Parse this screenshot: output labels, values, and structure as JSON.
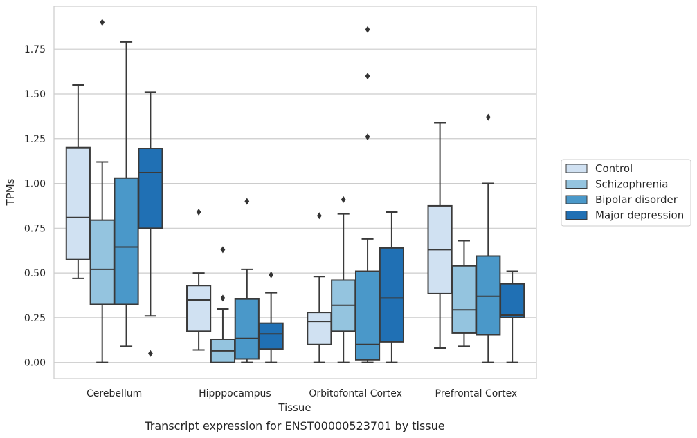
{
  "chart_data": {
    "type": "box",
    "xlabel": "Tissue",
    "ylabel": "TPMs",
    "caption": "Transcript expression for ENST00000523701 by tissue",
    "ylim": [
      -0.09,
      1.99
    ],
    "yticks": [
      "0.00",
      "0.25",
      "0.50",
      "0.75",
      "1.00",
      "1.25",
      "1.50",
      "1.75"
    ],
    "grid": "horizontal",
    "legend_position": "right",
    "categories": [
      "Cerebellum",
      "Hipppocampus",
      "Orbitofontal Cortex",
      "Prefrontal Cortex"
    ],
    "series": [
      {
        "name": "Control",
        "color": "#d0e1f2",
        "boxes": [
          {
            "whisker_low": 0.47,
            "q1": 0.575,
            "median": 0.81,
            "q3": 1.2,
            "whisker_high": 1.55,
            "outliers": []
          },
          {
            "whisker_low": 0.07,
            "q1": 0.175,
            "median": 0.35,
            "q3": 0.43,
            "whisker_high": 0.5,
            "outliers": [
              0.84
            ]
          },
          {
            "whisker_low": 0.0,
            "q1": 0.1,
            "median": 0.23,
            "q3": 0.28,
            "whisker_high": 0.48,
            "outliers": [
              0.82
            ]
          },
          {
            "whisker_low": 0.08,
            "q1": 0.385,
            "median": 0.63,
            "q3": 0.875,
            "whisker_high": 1.34,
            "outliers": []
          }
        ]
      },
      {
        "name": "Schizophrenia",
        "color": "#94c4df",
        "boxes": [
          {
            "whisker_low": 0.0,
            "q1": 0.325,
            "median": 0.52,
            "q3": 0.795,
            "whisker_high": 1.12,
            "outliers": [
              1.9
            ]
          },
          {
            "whisker_low": 0.0,
            "q1": 0.0,
            "median": 0.065,
            "q3": 0.13,
            "whisker_high": 0.3,
            "outliers": [
              0.36,
              0.63
            ]
          },
          {
            "whisker_low": 0.0,
            "q1": 0.175,
            "median": 0.32,
            "q3": 0.46,
            "whisker_high": 0.83,
            "outliers": [
              0.91
            ]
          },
          {
            "whisker_low": 0.09,
            "q1": 0.165,
            "median": 0.295,
            "q3": 0.54,
            "whisker_high": 0.68,
            "outliers": []
          }
        ]
      },
      {
        "name": "Bipolar disorder",
        "color": "#4a98c9",
        "boxes": [
          {
            "whisker_low": 0.09,
            "q1": 0.325,
            "median": 0.645,
            "q3": 1.03,
            "whisker_high": 1.79,
            "outliers": []
          },
          {
            "whisker_low": 0.0,
            "q1": 0.02,
            "median": 0.135,
            "q3": 0.355,
            "whisker_high": 0.52,
            "outliers": [
              0.9
            ]
          },
          {
            "whisker_low": 0.0,
            "q1": 0.015,
            "median": 0.1,
            "q3": 0.51,
            "whisker_high": 0.69,
            "outliers": [
              1.26,
              1.6,
              1.86
            ]
          },
          {
            "whisker_low": 0.0,
            "q1": 0.155,
            "median": 0.37,
            "q3": 0.595,
            "whisker_high": 1.0,
            "outliers": [
              1.37
            ]
          }
        ]
      },
      {
        "name": "Major depression",
        "color": "#2070b4",
        "boxes": [
          {
            "whisker_low": 0.26,
            "q1": 0.75,
            "median": 1.06,
            "q3": 1.195,
            "whisker_high": 1.51,
            "outliers": [
              0.05
            ]
          },
          {
            "whisker_low": 0.0,
            "q1": 0.075,
            "median": 0.16,
            "q3": 0.22,
            "whisker_high": 0.39,
            "outliers": [
              0.49
            ]
          },
          {
            "whisker_low": 0.0,
            "q1": 0.115,
            "median": 0.36,
            "q3": 0.64,
            "whisker_high": 0.84,
            "outliers": []
          },
          {
            "whisker_low": 0.0,
            "q1": 0.25,
            "median": 0.265,
            "q3": 0.44,
            "whisker_high": 0.51,
            "outliers": []
          }
        ]
      }
    ]
  }
}
